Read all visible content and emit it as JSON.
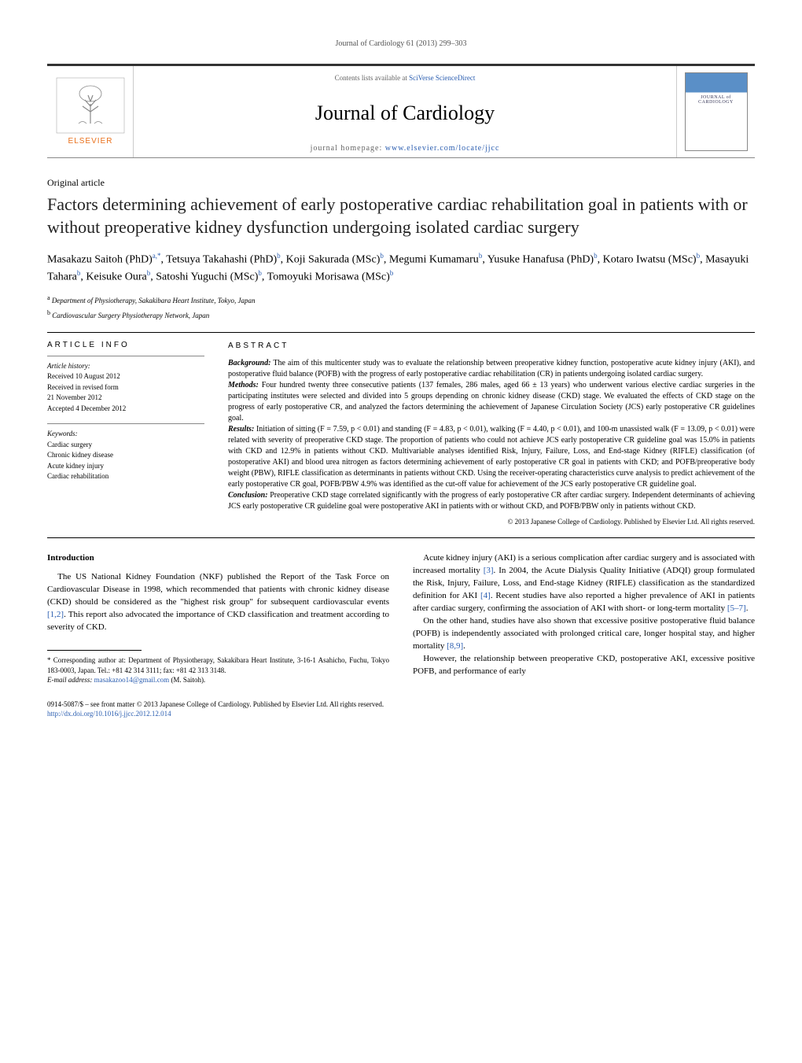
{
  "running_header": "Journal of Cardiology 61 (2013) 299–303",
  "masthead": {
    "contents_prefix": "Contents lists available at ",
    "contents_link": "SciVerse ScienceDirect",
    "journal_title": "Journal of Cardiology",
    "homepage_prefix": "journal homepage: ",
    "homepage_url": "www.elsevier.com/locate/jjcc"
  },
  "article_type": "Original article",
  "title": "Factors determining achievement of early postoperative cardiac rehabilitation goal in patients with or without preoperative kidney dysfunction undergoing isolated cardiac surgery",
  "authors_html": "Masakazu Saitoh (PhD)<sup>a,</sup><sup class='star'>*</sup>, Tetsuya Takahashi (PhD)<sup>b</sup>, Koji Sakurada (MSc)<sup>b</sup>, Megumi Kumamaru<sup>b</sup>, Yusuke Hanafusa (PhD)<sup>b</sup>, Kotaro Iwatsu (MSc)<sup>b</sup>, Masayuki Tahara<sup>b</sup>, Keisuke Oura<sup>b</sup>, Satoshi Yuguchi (MSc)<sup>b</sup>, Tomoyuki Morisawa (MSc)<sup>b</sup>",
  "affiliations": [
    {
      "sup": "a",
      "text": "Department of Physiotherapy, Sakakibara Heart Institute, Tokyo, Japan"
    },
    {
      "sup": "b",
      "text": "Cardiovascular Surgery Physiotherapy Network, Japan"
    }
  ],
  "article_info": {
    "heading": "ARTICLE INFO",
    "history_label": "Article history:",
    "history_lines": [
      "Received 10 August 2012",
      "Received in revised form",
      "21 November 2012",
      "Accepted 4 December 2012"
    ],
    "keywords_label": "Keywords:",
    "keywords": [
      "Cardiac surgery",
      "Chronic kidney disease",
      "Acute kidney injury",
      "Cardiac rehabilitation"
    ]
  },
  "abstract": {
    "heading": "ABSTRACT",
    "segments": [
      {
        "label": "Background:",
        "text": " The aim of this multicenter study was to evaluate the relationship between preoperative kidney function, postoperative acute kidney injury (AKI), and postoperative fluid balance (POFB) with the progress of early postoperative cardiac rehabilitation (CR) in patients undergoing isolated cardiac surgery."
      },
      {
        "label": "Methods:",
        "text": " Four hundred twenty three consecutive patients (137 females, 286 males, aged 66 ± 13 years) who underwent various elective cardiac surgeries in the participating institutes were selected and divided into 5 groups depending on chronic kidney disease (CKD) stage. We evaluated the effects of CKD stage on the progress of early postoperative CR, and analyzed the factors determining the achievement of Japanese Circulation Society (JCS) early postoperative CR guidelines goal."
      },
      {
        "label": "Results:",
        "text": " Initiation of sitting (F = 7.59, p < 0.01) and standing (F = 4.83, p < 0.01), walking (F = 4.40, p < 0.01), and 100-m unassisted walk (F = 13.09, p < 0.01) were related with severity of preoperative CKD stage. The proportion of patients who could not achieve JCS early postoperative CR guideline goal was 15.0% in patients with CKD and 12.9% in patients without CKD. Multivariable analyses identified Risk, Injury, Failure, Loss, and End-stage Kidney (RIFLE) classification (of postoperative AKI) and blood urea nitrogen as factors determining achievement of early postoperative CR goal in patients with CKD; and POFB/preoperative body weight (PBW), RIFLE classification as determinants in patients without CKD. Using the receiver-operating characteristics curve analysis to predict achievement of the early postoperative CR goal, POFB/PBW 4.9% was identified as the cut-off value for achievement of the JCS early postoperative CR guideline goal."
      },
      {
        "label": "Conclusion:",
        "text": " Preoperative CKD stage correlated significantly with the progress of early postoperative CR after cardiac surgery. Independent determinants of achieving JCS early postoperative CR guideline goal were postoperative AKI in patients with or without CKD, and POFB/PBW only in patients without CKD."
      }
    ],
    "copyright": "© 2013 Japanese College of Cardiology. Published by Elsevier Ltd. All rights reserved."
  },
  "body": {
    "intro_heading": "Introduction",
    "left_paras": [
      "The US National Kidney Foundation (NKF) published the Report of the Task Force on Cardiovascular Disease in 1998, which recommended that patients with chronic kidney disease (CKD) should be considered as the \"highest risk group\" for subsequent cardiovascular events <span class='cite'>[1,2]</span>. This report also advocated the importance of CKD classification and treatment according to severity of CKD."
    ],
    "right_paras": [
      "Acute kidney injury (AKI) is a serious complication after cardiac surgery and is associated with increased mortality <span class='cite'>[3]</span>. In 2004, the Acute Dialysis Quality Initiative (ADQI) group formulated the Risk, Injury, Failure, Loss, and End-stage Kidney (RIFLE) classification as the standardized definition for AKI <span class='cite'>[4]</span>. Recent studies have also reported a higher prevalence of AKI in patients after cardiac surgery, confirming the association of AKI with short- or long-term mortality <span class='cite'>[5–7]</span>.",
      "On the other hand, studies have also shown that excessive positive postoperative fluid balance (POFB) is independently associated with prolonged critical care, longer hospital stay, and higher mortality <span class='cite'>[8,9]</span>.",
      "However, the relationship between preoperative CKD, postoperative AKI, excessive positive POFB, and performance of early"
    ]
  },
  "footnotes": {
    "corresponding": "* Corresponding author at: Department of Physiotherapy, Sakakibara Heart Institute, 3-16-1 Asahicho, Fuchu, Tokyo 183-0003, Japan. Tel.: +81 42 314 3111; fax: +81 42 313 3148.",
    "email_label": "E-mail address:",
    "email": "masakazoo14@gmail.com",
    "email_person": "(M. Saitoh)."
  },
  "page_footer": {
    "line1": "0914-5087/$ – see front matter © 2013 Japanese College of Cardiology. Published by Elsevier Ltd. All rights reserved.",
    "doi": "http://dx.doi.org/10.1016/j.jjcc.2012.12.014"
  },
  "colors": {
    "link": "#2a5db0",
    "text": "#000000",
    "muted": "#666666",
    "rule": "#000000",
    "elsevier_orange": "#e9711c",
    "elsevier_gray": "#888888"
  }
}
